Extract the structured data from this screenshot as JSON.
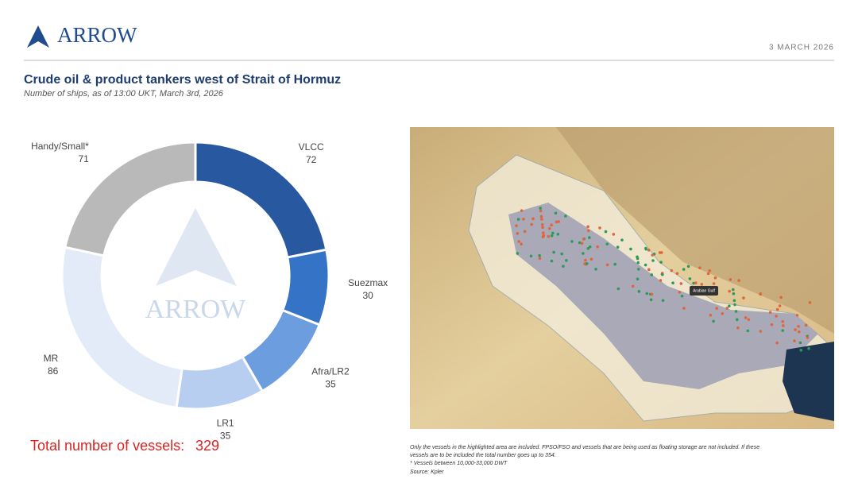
{
  "header": {
    "brand": "ARROW",
    "date": "3 MARCH 2026"
  },
  "chart_data": {
    "type": "donut",
    "title": "Crude oil & product tankers west of Strait of Hormuz",
    "subtitle": "Number of ships, as of 13:00 UKT, March 3rd, 2026",
    "categories": [
      "VLCC",
      "Suezmax",
      "Afra/LR2",
      "LR1",
      "MR",
      "Handy/Small*"
    ],
    "values": [
      72,
      30,
      35,
      35,
      86,
      71
    ],
    "colors": [
      "#28589f",
      "#3473c6",
      "#6c9ddf",
      "#b7cef0",
      "#e3ebf8",
      "#b9b9b9"
    ],
    "total_label": "Total number of vessels:",
    "total": 329
  },
  "map": {
    "label": "Arabian Gulf"
  },
  "notes": [
    "Only the vessels in the highlighted area are included. FPSO/FSO and vessels that are being used as floating storage are not included. If these vessels are to be included the total number goes up to 354.",
    "* Vessels between 10,000-33,000 DWT",
    "Source: Kpler"
  ]
}
